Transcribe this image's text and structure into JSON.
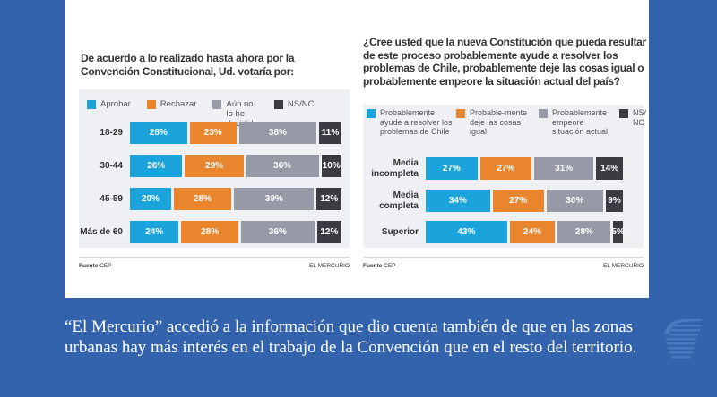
{
  "colors": {
    "background": "#3363ad",
    "c1": "#1ba4dc",
    "c2": "#e8852d",
    "c3": "#959aa6",
    "c4": "#3b3c41"
  },
  "chart_data": [
    {
      "type": "bar",
      "orientation": "horizontal",
      "stacked": true,
      "title": "De acuerdo a lo realizado hasta ahora por la Convención Constitucional, Ud. votaría por:",
      "categories": [
        "18-29",
        "30-44",
        "45-59",
        "Más de 60"
      ],
      "series": [
        {
          "name": "Aprobar",
          "values": [
            28,
            26,
            20,
            24
          ]
        },
        {
          "name": "Rechazar",
          "values": [
            23,
            29,
            28,
            28
          ]
        },
        {
          "name": "Aún no lo he decidido",
          "values": [
            38,
            36,
            39,
            36
          ]
        },
        {
          "name": "NS/NC",
          "values": [
            11,
            10,
            12,
            12
          ]
        }
      ],
      "legend": "top",
      "source_label": "Fuente",
      "source": "CEP",
      "brand": "EL MERCURIO"
    },
    {
      "type": "bar",
      "orientation": "horizontal",
      "stacked": true,
      "title": "¿Cree usted que la nueva Constitución que pueda resultar de este proceso probablemente ayude a resolver los problemas de Chile, probablemente deje las cosas igual o probablemente empeore la situación actual del país?",
      "categories": [
        "Media incompleta",
        "Media completa",
        "Superior"
      ],
      "series": [
        {
          "name": "Probablemente ayude a resolver los problemas de Chile",
          "values": [
            27,
            34,
            43
          ]
        },
        {
          "name": "Probable-mente deje las cosas igual",
          "values": [
            27,
            27,
            24
          ]
        },
        {
          "name": "Probablemente empeore situación actual",
          "values": [
            31,
            30,
            28
          ]
        },
        {
          "name": "NS/NC",
          "values": [
            14,
            9,
            5
          ]
        }
      ],
      "legend": "top",
      "source_label": "Fuente",
      "source": "CEP",
      "brand": "EL MERCURIO"
    }
  ],
  "caption": "“El Mercurio” accedió a la información que dio cuenta también de que en las zonas urbanas hay más interés en el trabajo de la Convención que en el resto del territorio."
}
